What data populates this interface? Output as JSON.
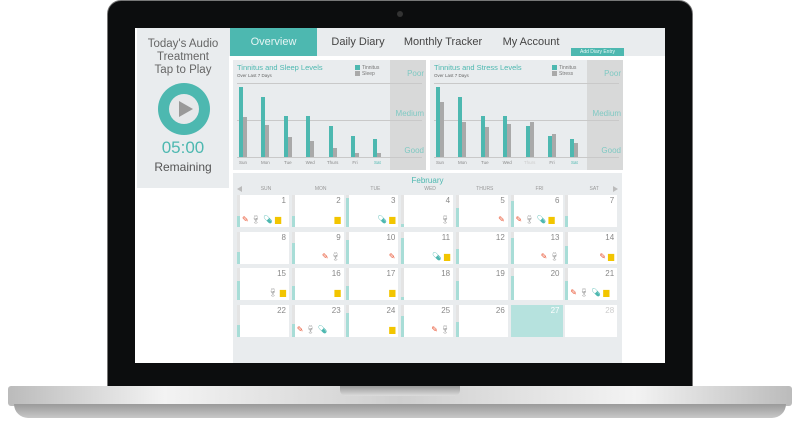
{
  "app": {
    "colors": {
      "accent": "#4db8b0",
      "panel": "#e9ecee",
      "secondary": "#999999",
      "pencil": "#e8502e",
      "cup": "#f2c500"
    }
  },
  "audio": {
    "line1": "Today's Audio",
    "line2": "Treatment",
    "line3": "Tap to Play",
    "time": "05:00",
    "remaining": "Remaining",
    "icon": "play-icon"
  },
  "nav": {
    "tabs": [
      {
        "label": "Overview",
        "active": true
      },
      {
        "label": "Daily Diary"
      },
      {
        "label": "Monthly Tracker"
      },
      {
        "label": "My Account"
      }
    ],
    "add_entry": "Add Diary  Entry"
  },
  "chart_data": [
    {
      "type": "bar",
      "title": "Tinnitus and Sleep Levels",
      "subtitle": "Over Last 7 Days",
      "categories": [
        "Sun",
        "Mon",
        "Tue",
        "Wed",
        "Thurs",
        "Fri",
        "Sat"
      ],
      "ylim": [
        0,
        100
      ],
      "y_tick_labels": [
        "Good",
        "Medium",
        "Poor"
      ],
      "legend": "top-right",
      "series": [
        {
          "name": "Tinnitus",
          "color": "#4db8b0",
          "values": [
            94,
            81,
            56,
            56,
            42,
            28,
            24
          ]
        },
        {
          "name": "Sleep",
          "color": "#a9a9a9",
          "values": [
            54,
            43,
            27,
            22,
            12,
            6,
            6
          ]
        }
      ]
    },
    {
      "type": "bar",
      "title": "Tinnitus and Stress Levels",
      "subtitle": "Over Last 7 Days",
      "categories": [
        "Sun",
        "Mon",
        "Tue",
        "Wed",
        "Thurs",
        "Fri",
        "Sat"
      ],
      "ylim": [
        0,
        100
      ],
      "y_tick_labels": [
        "Good",
        "Medium",
        "Poor"
      ],
      "legend": "top-right",
      "series": [
        {
          "name": "Tinnitus",
          "color": "#4db8b0",
          "values": [
            94,
            81,
            56,
            56,
            42,
            28,
            24
          ]
        },
        {
          "name": "Stress",
          "color": "#a9a9a9",
          "values": [
            75,
            47,
            40,
            45,
            47,
            31,
            19
          ]
        }
      ]
    }
  ],
  "calendar": {
    "month": "February",
    "weekdays": [
      "SUN",
      "MON",
      "TUE",
      "WED",
      "THURS",
      "FRI",
      "SAT"
    ],
    "today": 27,
    "days": [
      {
        "n": "1",
        "level": 0.35,
        "icons": [
          "pencil",
          "wine",
          "pill",
          "cup"
        ]
      },
      {
        "n": "2",
        "level": 0.35,
        "icons": [
          "cup"
        ]
      },
      {
        "n": "3",
        "level": 0.9,
        "icons": [
          "pill",
          "cup"
        ]
      },
      {
        "n": "4",
        "level": 0.1,
        "icons": [
          "wine"
        ]
      },
      {
        "n": "5",
        "level": 0.6,
        "icons": [
          "pencil"
        ]
      },
      {
        "n": "6",
        "level": 0.8,
        "icons": [
          "pencil",
          "wine",
          "pill",
          "cup"
        ]
      },
      {
        "n": "7",
        "level": 0.35,
        "icons": []
      },
      {
        "n": "8",
        "level": 0.35,
        "icons": []
      },
      {
        "n": "9",
        "level": 0.65,
        "icons": [
          "pencil",
          "wine"
        ]
      },
      {
        "n": "10",
        "level": 0.75,
        "icons": [
          "pencil"
        ]
      },
      {
        "n": "11",
        "level": 0.8,
        "icons": [
          "pill",
          "cup"
        ]
      },
      {
        "n": "12",
        "level": 0.45,
        "icons": []
      },
      {
        "n": "13",
        "level": 0.8,
        "icons": [
          "pencil",
          "wine"
        ]
      },
      {
        "n": "14",
        "level": 0.55,
        "icons": [
          "pencil",
          "cup"
        ]
      },
      {
        "n": "15",
        "level": 0.6,
        "icons": [
          "wine",
          "cup"
        ]
      },
      {
        "n": "16",
        "level": 0.45,
        "icons": [
          "cup"
        ]
      },
      {
        "n": "17",
        "level": 0.45,
        "icons": [
          "cup"
        ]
      },
      {
        "n": "18",
        "level": 0.1,
        "icons": []
      },
      {
        "n": "19",
        "level": 0.6,
        "icons": []
      },
      {
        "n": "20",
        "level": 0.75,
        "icons": []
      },
      {
        "n": "21",
        "level": 0.6,
        "icons": [
          "pencil",
          "wine",
          "pill",
          "cup"
        ]
      },
      {
        "n": "22",
        "level": 0.35,
        "icons": []
      },
      {
        "n": "23",
        "level": 0.4,
        "icons": [
          "pencil",
          "wine",
          "pill"
        ]
      },
      {
        "n": "24",
        "level": 0.75,
        "icons": [
          "cup"
        ]
      },
      {
        "n": "25",
        "level": 0.65,
        "icons": [
          "pencil",
          "wine"
        ]
      },
      {
        "n": "26",
        "level": 0.45,
        "icons": []
      },
      {
        "n": "27",
        "level": 0,
        "icons": []
      },
      {
        "n": "28",
        "level": 0,
        "icons": []
      }
    ]
  }
}
